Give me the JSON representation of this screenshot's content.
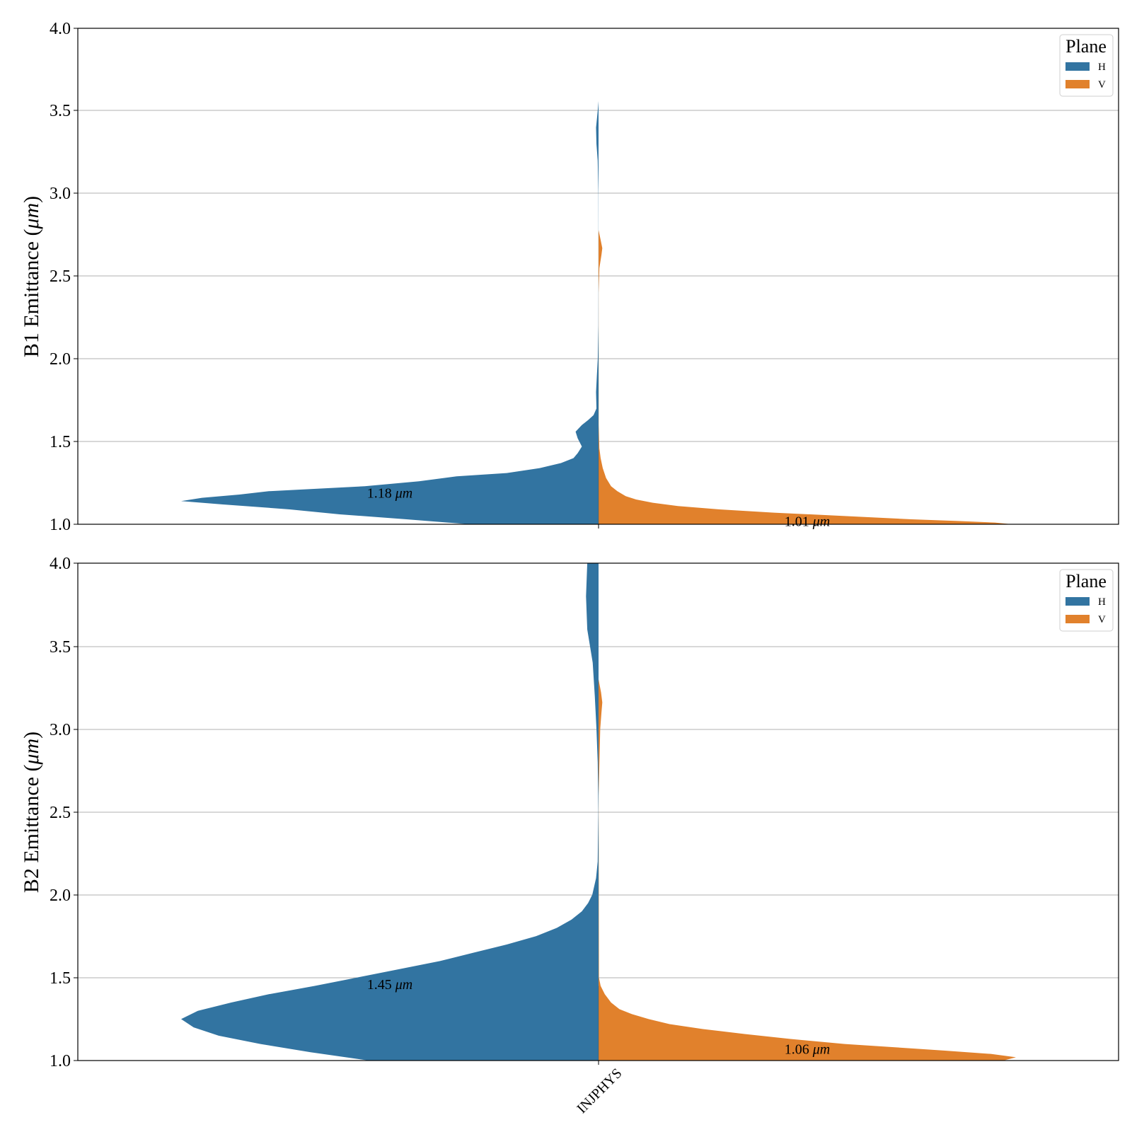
{
  "chart_data": [
    {
      "type": "violin",
      "ylabel_text": "B1 Emittance (",
      "ylabel_unit": "μm",
      "ylabel_close": ")",
      "ylim": [
        1.0,
        4.0
      ],
      "yticks": [
        "1.0",
        "1.5",
        "2.0",
        "2.5",
        "3.0",
        "3.5",
        "4.0"
      ],
      "category": "INJPHYS",
      "grid": true,
      "legend": {
        "title": "Plane",
        "placement": "upper right",
        "items": [
          "H",
          "V"
        ]
      },
      "series": [
        {
          "name": "H",
          "color": "#3274a1",
          "side": "left",
          "annotation_value": "1.18",
          "annotation_unit": "μm",
          "annotation_at": 1.19,
          "density": [
            [
              1.0,
              0.31
            ],
            [
              1.03,
              0.46
            ],
            [
              1.06,
              0.62
            ],
            [
              1.09,
              0.74
            ],
            [
              1.12,
              0.9
            ],
            [
              1.14,
              1.0
            ],
            [
              1.16,
              0.95
            ],
            [
              1.18,
              0.86
            ],
            [
              1.2,
              0.79
            ],
            [
              1.23,
              0.56
            ],
            [
              1.26,
              0.43
            ],
            [
              1.29,
              0.34
            ],
            [
              1.31,
              0.22
            ],
            [
              1.34,
              0.14
            ],
            [
              1.37,
              0.09
            ],
            [
              1.4,
              0.06
            ],
            [
              1.43,
              0.05
            ],
            [
              1.47,
              0.04
            ],
            [
              1.52,
              0.05
            ],
            [
              1.56,
              0.055
            ],
            [
              1.6,
              0.04
            ],
            [
              1.63,
              0.025
            ],
            [
              1.66,
              0.012
            ],
            [
              1.7,
              0.005
            ],
            [
              1.8,
              0.006
            ],
            [
              1.9,
              0.004
            ],
            [
              2.0,
              0.0018
            ],
            [
              2.2,
              0.0004
            ],
            [
              2.6,
              0.0002
            ],
            [
              3.0,
              0.0004
            ],
            [
              3.2,
              0.002
            ],
            [
              3.3,
              0.005
            ],
            [
              3.4,
              0.006
            ],
            [
              3.5,
              0.002
            ],
            [
              3.56,
              0.0
            ]
          ]
        },
        {
          "name": "V",
          "color": "#e1812c",
          "side": "right",
          "annotation_value": "1.01",
          "annotation_unit": "μm",
          "annotation_at": 1.02,
          "density": [
            [
              1.0,
              0.99
            ],
            [
              1.01,
              0.95
            ],
            [
              1.02,
              0.86
            ],
            [
              1.03,
              0.75
            ],
            [
              1.05,
              0.59
            ],
            [
              1.07,
              0.42
            ],
            [
              1.09,
              0.29
            ],
            [
              1.11,
              0.19
            ],
            [
              1.13,
              0.13
            ],
            [
              1.15,
              0.09
            ],
            [
              1.17,
              0.065
            ],
            [
              1.2,
              0.045
            ],
            [
              1.23,
              0.03
            ],
            [
              1.28,
              0.018
            ],
            [
              1.34,
              0.01
            ],
            [
              1.4,
              0.005
            ],
            [
              1.46,
              0.002
            ],
            [
              1.6,
              0.0004
            ],
            [
              2.4,
              0.0002
            ],
            [
              2.55,
              0.002
            ],
            [
              2.63,
              0.007
            ],
            [
              2.67,
              0.009
            ],
            [
              2.72,
              0.005
            ],
            [
              2.78,
              0.0
            ]
          ]
        }
      ]
    },
    {
      "type": "violin",
      "ylabel_text": "B2 Emittance (",
      "ylabel_unit": "μm",
      "ylabel_close": ")",
      "ylim": [
        1.0,
        4.0
      ],
      "yticks": [
        "1.0",
        "1.5",
        "2.0",
        "2.5",
        "3.0",
        "3.5",
        "4.0"
      ],
      "category": "INJPHYS",
      "grid": true,
      "legend": {
        "title": "Plane",
        "placement": "upper right",
        "items": [
          "H",
          "V"
        ]
      },
      "series": [
        {
          "name": "H",
          "color": "#3274a1",
          "side": "left",
          "annotation_value": "1.45",
          "annotation_unit": "μm",
          "annotation_at": 1.46,
          "density": [
            [
              1.0,
              0.55
            ],
            [
              1.05,
              0.69
            ],
            [
              1.1,
              0.81
            ],
            [
              1.15,
              0.91
            ],
            [
              1.2,
              0.97
            ],
            [
              1.25,
              1.0
            ],
            [
              1.3,
              0.96
            ],
            [
              1.35,
              0.88
            ],
            [
              1.4,
              0.79
            ],
            [
              1.45,
              0.68
            ],
            [
              1.5,
              0.58
            ],
            [
              1.55,
              0.48
            ],
            [
              1.6,
              0.38
            ],
            [
              1.65,
              0.3
            ],
            [
              1.7,
              0.22
            ],
            [
              1.75,
              0.15
            ],
            [
              1.8,
              0.1
            ],
            [
              1.85,
              0.065
            ],
            [
              1.9,
              0.04
            ],
            [
              1.95,
              0.025
            ],
            [
              2.0,
              0.015
            ],
            [
              2.1,
              0.006
            ],
            [
              2.2,
              0.002
            ],
            [
              2.5,
              0.0005
            ],
            [
              2.8,
              0.002
            ],
            [
              3.0,
              0.005
            ],
            [
              3.2,
              0.009
            ],
            [
              3.4,
              0.014
            ],
            [
              3.6,
              0.027
            ],
            [
              3.8,
              0.03
            ],
            [
              4.0,
              0.027
            ]
          ]
        },
        {
          "name": "V",
          "color": "#e1812c",
          "side": "right",
          "annotation_value": "1.06",
          "annotation_unit": "μm",
          "annotation_at": 1.07,
          "density": [
            [
              1.0,
              0.97
            ],
            [
              1.02,
              1.0
            ],
            [
              1.04,
              0.94
            ],
            [
              1.06,
              0.83
            ],
            [
              1.08,
              0.71
            ],
            [
              1.1,
              0.59
            ],
            [
              1.13,
              0.46
            ],
            [
              1.16,
              0.35
            ],
            [
              1.19,
              0.25
            ],
            [
              1.22,
              0.17
            ],
            [
              1.25,
              0.12
            ],
            [
              1.28,
              0.08
            ],
            [
              1.31,
              0.05
            ],
            [
              1.35,
              0.03
            ],
            [
              1.4,
              0.015
            ],
            [
              1.45,
              0.005
            ],
            [
              1.5,
              0.001
            ],
            [
              2.6,
              0.0002
            ],
            [
              3.0,
              0.004
            ],
            [
              3.1,
              0.007
            ],
            [
              3.16,
              0.009
            ],
            [
              3.22,
              0.006
            ],
            [
              3.3,
              0.0
            ]
          ]
        }
      ]
    }
  ]
}
